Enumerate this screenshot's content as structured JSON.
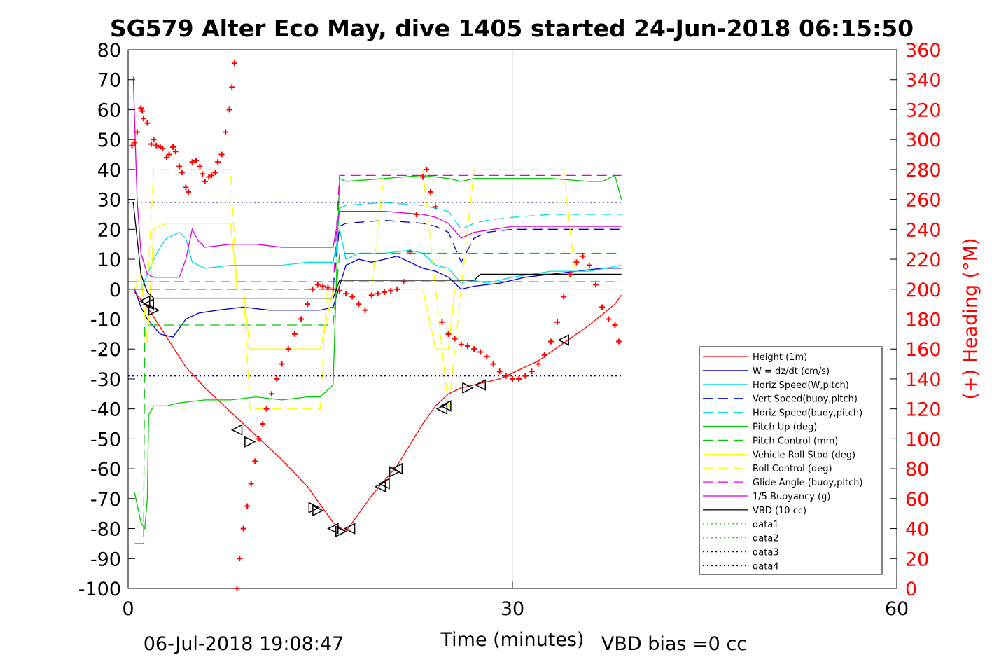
{
  "chart_data": {
    "type": "line",
    "title": "SG579 Alter Eco May, dive 1405 started 24-Jun-2018 06:15:50",
    "xlabel": "Time (minutes)",
    "ylabel_right": "(+) Heading (°M)",
    "xlim": [
      0,
      60
    ],
    "ylim": [
      -100,
      80
    ],
    "y2lim": [
      0,
      360
    ],
    "xticks": [
      "0",
      "30",
      "60"
    ],
    "yticks": [
      "80",
      "70",
      "60",
      "50",
      "40",
      "30",
      "20",
      "10",
      "0",
      "-10",
      "-20",
      "-30",
      "-40",
      "-50",
      "-60",
      "-70",
      "-80",
      "-90",
      "-100"
    ],
    "y2ticks": [
      "360",
      "340",
      "320",
      "300",
      "280",
      "260",
      "240",
      "220",
      "200",
      "180",
      "160",
      "140",
      "120",
      "100",
      "80",
      "60",
      "40",
      "20",
      "0"
    ],
    "grid": "x=30 only",
    "legend_position": "lower-right",
    "footer_left": "06-Jul-2018 19:08:47",
    "footer_right": "VBD bias =0 cc",
    "series": [
      {
        "name": "Height (1m)",
        "color": "#ff0000",
        "style": "solid",
        "x": [
          0.5,
          1.5,
          3,
          4.5,
          6,
          8,
          10,
          12,
          14,
          15,
          16,
          17,
          18,
          19,
          20,
          21,
          22,
          23,
          24,
          25,
          26,
          27,
          28,
          29,
          30,
          32,
          34,
          36,
          38,
          38.5
        ],
        "y": [
          -1,
          -6,
          -16,
          -26,
          -33,
          -41,
          -49,
          -57,
          -66,
          -72,
          -78,
          -81,
          -75,
          -69,
          -64,
          -59,
          -52,
          -45,
          -39,
          -35,
          -33,
          -32,
          -31,
          -30,
          -28,
          -24,
          -18,
          -12,
          -5,
          -2
        ]
      },
      {
        "name": "W = dz/dt (cm/s)",
        "color": "#0000cc",
        "style": "solid",
        "x": [
          0.5,
          1,
          1.5,
          2.5,
          3.5,
          4.5,
          5.5,
          7,
          9,
          11,
          13,
          15,
          16,
          17,
          18,
          19,
          20,
          21,
          22,
          23,
          24,
          25,
          26,
          27,
          29,
          31,
          33,
          35,
          37,
          38.5
        ],
        "y": [
          0,
          -6,
          -10,
          -15,
          -16,
          -10,
          -8,
          -7,
          -6,
          -7,
          -7,
          -7,
          -6,
          8,
          10,
          9,
          10,
          11,
          9,
          7,
          6,
          4,
          0,
          1,
          2,
          4,
          5,
          6,
          7,
          7
        ]
      },
      {
        "name": "Horiz Speed(W,pitch)",
        "color": "#00e0e0",
        "style": "solid",
        "x": [
          0.5,
          1,
          1.5,
          2,
          2.5,
          3,
          4,
          4.5,
          5,
          6,
          8,
          10,
          12,
          14,
          16,
          16.5,
          17,
          18,
          20,
          22,
          23,
          24,
          25,
          26,
          27,
          28,
          30,
          33,
          36,
          38.5
        ],
        "y": [
          0,
          0,
          5,
          10,
          14,
          17,
          19,
          17,
          9,
          7,
          8,
          8,
          8,
          9,
          9,
          20,
          10,
          12,
          12,
          13,
          12,
          8,
          7,
          2,
          3,
          2,
          4,
          6,
          6,
          8
        ]
      },
      {
        "name": "Vert Speed(buoy,pitch)",
        "color": "#0000cc",
        "style": "dash",
        "x": [
          0.5,
          16,
          16.5,
          17,
          20,
          23,
          24,
          25,
          26,
          27,
          28,
          30,
          33,
          36,
          38.5
        ],
        "y": [
          0,
          0,
          21,
          22,
          23,
          22,
          21,
          19,
          9,
          17,
          19,
          20,
          20,
          20,
          20
        ]
      },
      {
        "name": "Horiz Speed(buoy,pitch)",
        "color": "#00e0e0",
        "style": "dash",
        "x": [
          0.5,
          16,
          16.5,
          17,
          20,
          23,
          24,
          25,
          26,
          27,
          28,
          30,
          33,
          36,
          38.5
        ],
        "y": [
          0,
          0,
          27,
          28,
          29,
          28,
          27,
          26,
          20,
          22,
          23,
          24,
          25,
          25,
          25
        ]
      },
      {
        "name": "Pitch Up (deg)",
        "color": "#00cc00",
        "style": "solid",
        "x": [
          0.5,
          1,
          1.3,
          1.5,
          1.6,
          2,
          3,
          4,
          6,
          8,
          10,
          12,
          14,
          15,
          16,
          16.5,
          17,
          20,
          23,
          25,
          26,
          27,
          30,
          33,
          36,
          37,
          38,
          38.5
        ],
        "y": [
          -68,
          -78,
          -80,
          -70,
          -42,
          -39,
          -39,
          -38,
          -37,
          -37,
          -36,
          -37,
          -36,
          -36,
          -32,
          37,
          36,
          37,
          38,
          37,
          36,
          37,
          37,
          37,
          36,
          36,
          38,
          30
        ]
      },
      {
        "name": "Pitch Control (mm)",
        "color": "#00cc00",
        "style": "dash",
        "x": [
          0.5,
          1.2,
          1.3,
          16,
          16.5,
          38.5
        ],
        "y": [
          -85,
          -85,
          -12,
          -12,
          12,
          12
        ]
      },
      {
        "name": "Vehicle Roll Stbd (deg)",
        "color": "#ffff00",
        "style": "solid",
        "x": [
          0.5,
          1,
          1.5,
          2,
          3,
          4,
          6,
          8,
          8.5,
          9,
          9.5,
          10,
          14,
          15,
          16,
          17,
          18,
          19,
          20,
          21,
          22,
          23,
          24,
          25,
          25.5,
          26,
          27,
          30,
          33,
          34,
          36,
          38.5
        ],
        "y": [
          0,
          5,
          -18,
          20,
          22,
          22,
          22,
          22,
          0,
          0,
          -20,
          -20,
          -20,
          -20,
          0,
          0,
          0,
          0,
          0,
          0,
          0,
          0,
          -20,
          -20,
          0,
          0,
          0,
          0,
          0,
          0,
          0,
          0
        ]
      },
      {
        "name": "Roll Control (deg)",
        "color": "#ffff00",
        "style": "dash",
        "x": [
          0.5,
          1.5,
          2,
          8,
          8.5,
          9,
          9.5,
          15,
          15.5,
          16,
          19,
          20,
          23,
          24,
          25,
          26,
          27,
          34,
          35,
          38.5
        ],
        "y": [
          0,
          0,
          40,
          40,
          0,
          0,
          -40,
          -40,
          0,
          0,
          0,
          40,
          40,
          0,
          -40,
          0,
          40,
          40,
          0,
          0
        ]
      },
      {
        "name": "Glide Angle (buoy,pitch)",
        "color": "#dd00dd",
        "style": "dash",
        "x": [
          0.5,
          16,
          16.5,
          38.5
        ],
        "y": [
          0,
          0,
          38,
          38
        ]
      },
      {
        "name": "1/5 Buoyancy (g)",
        "color": "#dd00dd",
        "style": "solid",
        "x": [
          0.4,
          0.7,
          1,
          1.5,
          2,
          3,
          4,
          4.5,
          5,
          5.5,
          6,
          8,
          10,
          12,
          14,
          15.5,
          16,
          16.5,
          17,
          20,
          23,
          24,
          25,
          26,
          27,
          30,
          33,
          36,
          38.5
        ],
        "y": [
          71,
          30,
          12,
          5,
          4,
          4,
          4,
          10,
          20,
          16,
          14,
          15,
          15,
          14,
          14,
          14,
          14,
          26,
          26,
          26,
          25,
          24,
          22,
          17,
          19,
          21,
          21,
          21,
          21
        ]
      },
      {
        "name": "VBD (10 cc)",
        "color": "#000000",
        "style": "solid",
        "x": [
          0.4,
          1,
          1.5,
          2,
          3,
          16,
          16.5,
          27,
          27.5,
          38.5
        ],
        "y": [
          29,
          5,
          -1,
          -3,
          -3,
          -3,
          3,
          3,
          5,
          5
        ]
      },
      {
        "name": "data1",
        "color": "#00cc00",
        "style": "dot",
        "x": [],
        "y": []
      },
      {
        "name": "data2",
        "color": "#00cc00",
        "style": "dot",
        "x": [],
        "y": []
      },
      {
        "name": "data3",
        "color": "#000099",
        "style": "dot",
        "x": [
          0,
          38.5
        ],
        "y": [
          29,
          29
        ]
      },
      {
        "name": "data4",
        "color": "#000099",
        "style": "dot",
        "x": [
          0,
          38.5
        ],
        "y": [
          -29,
          -29
        ]
      }
    ],
    "extra_lines": [
      {
        "color": "#880000",
        "style": "dash",
        "x": [
          0,
          38.5
        ],
        "y": [
          2.5,
          2.5
        ]
      }
    ],
    "heading": {
      "axis": "right",
      "color": "#ff0000",
      "marker": "+",
      "x": [
        0.3,
        0.5,
        0.7,
        1,
        1.1,
        1.2,
        1.5,
        1.8,
        2,
        2.2,
        2.5,
        2.7,
        3,
        3.2,
        3.5,
        3.7,
        4,
        4.2,
        4.5,
        4.7,
        5,
        5.3,
        5.6,
        5.8,
        6,
        6.3,
        6.5,
        6.8,
        7,
        7.3,
        7.6,
        7.9,
        8.1,
        8.3,
        8.5,
        8.7,
        9,
        9.3,
        9.6,
        9.9,
        10.2,
        10.5,
        10.8,
        11.2,
        11.6,
        12,
        12.5,
        13,
        13.5,
        14,
        14.4,
        14.8,
        15.2,
        15.6,
        16,
        16.5,
        17,
        17.5,
        18,
        18.5,
        19,
        19.5,
        20,
        20.5,
        21,
        21.5,
        22,
        22.5,
        23,
        23.3,
        23.6,
        24,
        24.5,
        25,
        25.5,
        26,
        26.5,
        27,
        27.5,
        28,
        28.5,
        29,
        29.5,
        30,
        30.5,
        31,
        31.5,
        32,
        32.5,
        33,
        33.5,
        34,
        34.5,
        35,
        35.5,
        36,
        36.5,
        37,
        37.5,
        38,
        38.3
      ],
      "y": [
        296,
        298,
        305,
        321,
        319,
        314,
        311,
        297,
        300,
        296,
        295,
        294,
        288,
        290,
        295,
        292,
        282,
        278,
        268,
        265,
        285,
        286,
        282,
        277,
        272,
        275,
        276,
        278,
        285,
        290,
        305,
        320,
        335,
        351,
        0,
        20,
        40,
        55,
        70,
        85,
        100,
        110,
        120,
        130,
        140,
        150,
        160,
        170,
        180,
        190,
        200,
        203,
        202,
        201,
        200,
        199,
        197,
        195,
        190,
        186,
        196,
        197,
        198,
        199,
        200,
        205,
        225,
        250,
        275,
        280,
        265,
        255,
        178,
        170,
        167,
        163,
        162,
        160,
        158,
        155,
        150,
        145,
        142,
        140,
        140,
        142,
        145,
        150,
        156,
        165,
        178,
        195,
        210,
        218,
        222,
        216,
        203,
        188,
        180,
        176,
        165
      ]
    },
    "markers": {
      "color": "#000000",
      "shape": "triangle",
      "points": [
        {
          "x": 1.3,
          "y": -4,
          "dir": "left"
        },
        {
          "x": 1.6,
          "y": -5,
          "dir": "left"
        },
        {
          "x": 2,
          "y": -7,
          "dir": "right"
        },
        {
          "x": 8.5,
          "y": -47,
          "dir": "left"
        },
        {
          "x": 9.5,
          "y": -51,
          "dir": "right"
        },
        {
          "x": 14.5,
          "y": -73,
          "dir": "right"
        },
        {
          "x": 14.8,
          "y": -74,
          "dir": "right"
        },
        {
          "x": 16,
          "y": -80,
          "dir": "left"
        },
        {
          "x": 16.6,
          "y": -81,
          "dir": "right"
        },
        {
          "x": 17.3,
          "y": -80,
          "dir": "left"
        },
        {
          "x": 19.7,
          "y": -66,
          "dir": "left"
        },
        {
          "x": 20,
          "y": -65,
          "dir": "left"
        },
        {
          "x": 20.8,
          "y": -61,
          "dir": "right"
        },
        {
          "x": 21,
          "y": -60,
          "dir": "left"
        },
        {
          "x": 24.5,
          "y": -40,
          "dir": "left"
        },
        {
          "x": 24.8,
          "y": -39,
          "dir": "left"
        },
        {
          "x": 26.5,
          "y": -33,
          "dir": "right"
        },
        {
          "x": 27.5,
          "y": -32,
          "dir": "left"
        },
        {
          "x": 34,
          "y": -17,
          "dir": "left"
        }
      ]
    }
  }
}
